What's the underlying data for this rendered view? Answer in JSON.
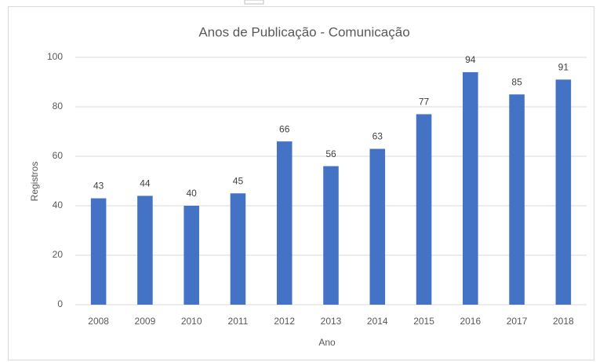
{
  "chart_data": {
    "type": "bar",
    "title": "Anos de Publicação - Comunicação",
    "x_label": "Ano",
    "y_label": "Registros",
    "categories": [
      "2008",
      "2009",
      "2010",
      "2011",
      "2012",
      "2013",
      "2014",
      "2015",
      "2016",
      "2017",
      "2018"
    ],
    "values": [
      43,
      44,
      40,
      45,
      66,
      56,
      63,
      77,
      94,
      85,
      91
    ],
    "color": "#4472c4",
    "ylim": [
      0,
      100
    ],
    "yticks": [
      0,
      20,
      40,
      60,
      80,
      100
    ],
    "grid": true,
    "data_labels": true
  }
}
